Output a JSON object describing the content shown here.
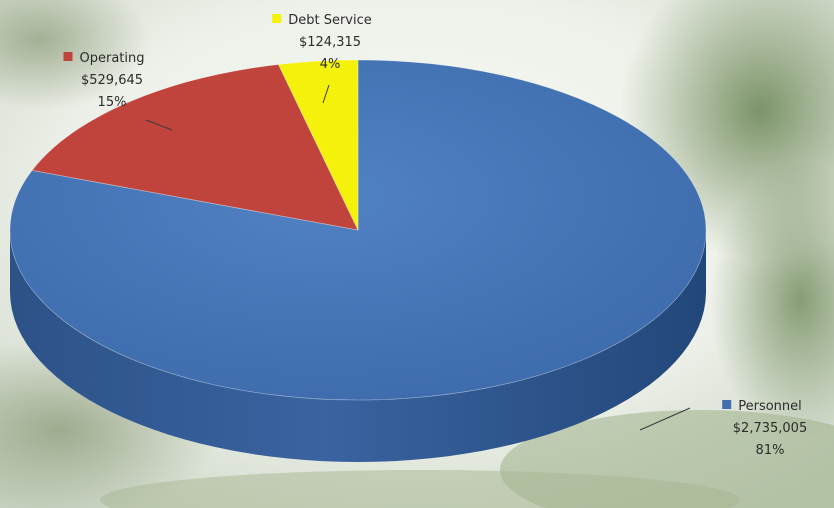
{
  "chart_data": {
    "type": "pie",
    "title": "",
    "slices": [
      {
        "label": "Personnel",
        "amount": "$2,735,005",
        "percent": "81%",
        "value": 2735005,
        "color": "#3f6fb0"
      },
      {
        "label": "Operating",
        "amount": "$529,645",
        "percent": "15%",
        "value": 529645,
        "color": "#c0443c"
      },
      {
        "label": "Debt Service",
        "amount": "$124,315",
        "percent": "4%",
        "value": 124315,
        "color": "#f4f20a"
      }
    ],
    "legend": "inline data labels"
  }
}
